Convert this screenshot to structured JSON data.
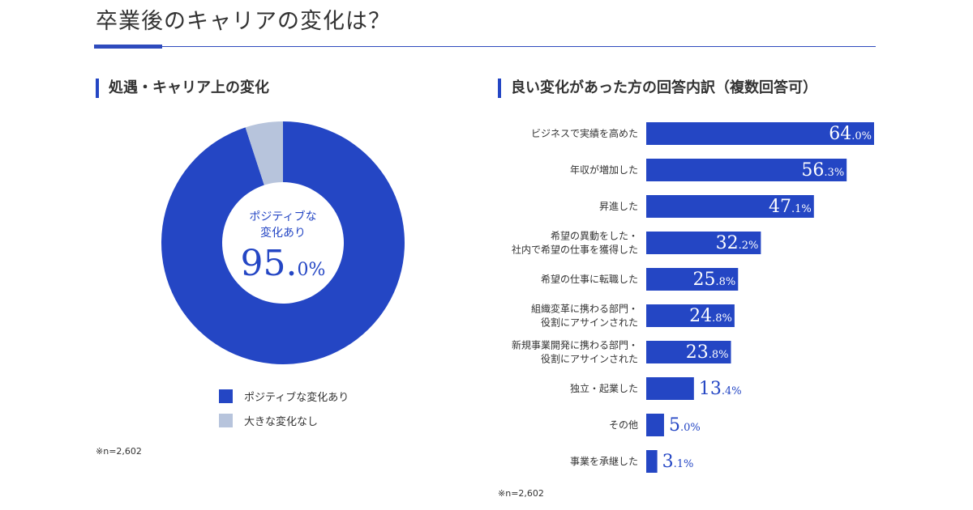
{
  "title": "卒業後のキャリアの変化は？",
  "colors": {
    "accent": "#2446c4",
    "muted": "#b7c4dc"
  },
  "chart_data": [
    {
      "type": "pie",
      "title": "処遇・キャリア上の変化",
      "center_label": [
        "ポジティブな",
        "変化あり"
      ],
      "center_value": "95.0%",
      "center_value_main": "95.",
      "center_value_sub": "0%",
      "categories": [
        "ポジティブな変化あり",
        "大きな変化なし"
      ],
      "values": [
        95.0,
        5.0
      ],
      "colors": [
        "#2446c4",
        "#b7c4dc"
      ],
      "note": "※n=2,602"
    },
    {
      "type": "bar",
      "orientation": "horizontal",
      "title": "良い変化があった方の回答内訳（複数回答可）",
      "categories": [
        [
          "ビジネスで実績を高めた"
        ],
        [
          "年収が増加した"
        ],
        [
          "昇進した"
        ],
        [
          "希望の異動をした・",
          "社内で希望の仕事を獲得した"
        ],
        [
          "希望の仕事に転職した"
        ],
        [
          "組織変革に携わる部門・",
          "役割にアサインされた"
        ],
        [
          "新規事業開発に携わる部門・",
          "役割にアサインされた"
        ],
        [
          "独立・起業した"
        ],
        [
          "その他"
        ],
        [
          "事業を承継した"
        ]
      ],
      "values": [
        64.0,
        56.3,
        47.1,
        32.2,
        25.8,
        24.8,
        23.8,
        13.4,
        5.0,
        3.1
      ],
      "value_labels": [
        "64.0%",
        "56.3%",
        "47.1%",
        "32.2%",
        "25.8%",
        "24.8%",
        "23.8%",
        "13.4%",
        "5.0%",
        "3.1%"
      ],
      "xlim": [
        0,
        64.0
      ],
      "note": "※n=2,602"
    }
  ]
}
